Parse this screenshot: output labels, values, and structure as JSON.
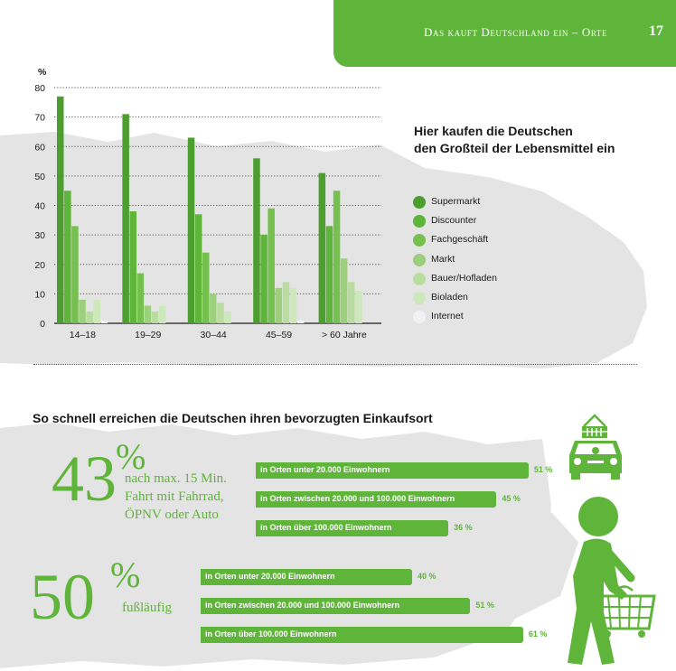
{
  "header": {
    "section_title": "Das kauft Deutschland ein – Orte",
    "page_number": "17",
    "color": "#5fb43a"
  },
  "chart_data": {
    "type": "bar",
    "title": "Hier kaufen die Deutschen den Großteil der Lebensmittel ein",
    "title_lines": [
      "Hier kaufen die Deutschen",
      "den Großteil der Lebensmittel ein"
    ],
    "ylabel": "%",
    "ylim": [
      0,
      80
    ],
    "yticks": [
      "0",
      "10",
      "20",
      "30",
      "40",
      "50",
      "60",
      "70",
      "80"
    ],
    "grid": "dotted horizontal",
    "legend_position": "right",
    "categories": [
      "14–18",
      "19–29",
      "30–44",
      "45–59",
      "> 60 Jahre"
    ],
    "series": [
      {
        "name": "Supermarkt",
        "color": "#4c9e2f",
        "values": [
          77,
          71,
          63,
          56,
          51
        ]
      },
      {
        "name": "Discounter",
        "color": "#5fb43a",
        "values": [
          45,
          38,
          37,
          30,
          33
        ]
      },
      {
        "name": "Fachgeschäft",
        "color": "#76c050",
        "values": [
          33,
          17,
          24,
          39,
          45
        ]
      },
      {
        "name": "Markt",
        "color": "#9dd07d",
        "values": [
          8,
          6,
          10,
          12,
          22
        ]
      },
      {
        "name": "Bauer/Hofladen",
        "color": "#b8dd9f",
        "values": [
          4,
          4,
          7,
          14,
          14
        ]
      },
      {
        "name": "Bioladen",
        "color": "#cde8bb",
        "values": [
          8,
          6,
          4,
          12,
          11
        ]
      },
      {
        "name": "Internet",
        "color": "#f2f2f2",
        "values": [
          1,
          0,
          0,
          1,
          0
        ]
      }
    ]
  },
  "reach": {
    "title": "So schnell erreichen die Deutschen ihren bevorzugten Einkaufsort",
    "group1": {
      "big_number": "43",
      "big_unit": "%",
      "subtitle_lines": [
        "nach max. 15 Min.",
        "Fahrt mit Fahrrad,",
        "ÖPNV oder Auto"
      ],
      "icon": "car-with-basket-icon",
      "bars": [
        {
          "label": "in Orten unter 20.000 Einwohnern",
          "value": 51,
          "value_label": "51 %"
        },
        {
          "label": "in Orten zwischen 20.000 und 100.000 Einwohnern",
          "value": 45,
          "value_label": "45 %"
        },
        {
          "label": "in Orten über 100.000 Einwohnern",
          "value": 36,
          "value_label": "36 %"
        }
      ]
    },
    "group2": {
      "big_number": "50",
      "big_unit": "%",
      "subtitle_lines": [
        "fußläufig"
      ],
      "icon": "walking-person-with-basket-icon",
      "bars": [
        {
          "label": "in Orten unter 20.000 Einwohnern",
          "value": 40,
          "value_label": "40 %"
        },
        {
          "label": "in Orten zwischen 20.000 und 100.000 Einwohnern",
          "value": 51,
          "value_label": "51 %"
        },
        {
          "label": "in Orten über 100.000 Einwohnern",
          "value": 61,
          "value_label": "61 %"
        }
      ]
    }
  }
}
